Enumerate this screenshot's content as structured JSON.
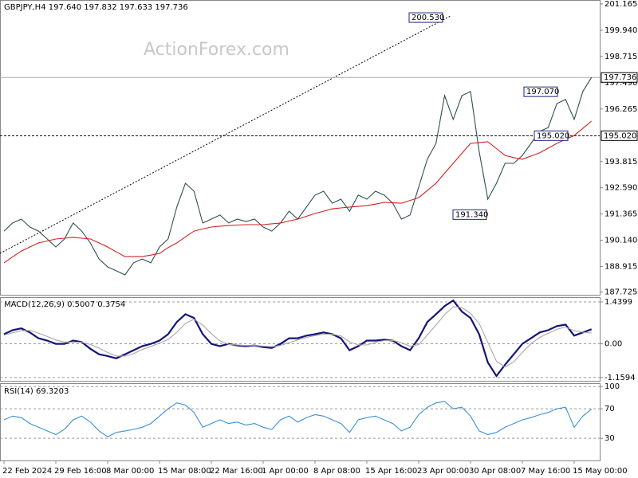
{
  "chart_data": [
    {
      "type": "line",
      "title": "GBPJPY,H4 197.640 197.832 197.633 197.736",
      "watermark": "ActionForex.com",
      "categories": [
        "22 Feb 2024",
        null,
        null,
        null,
        null,
        null,
        "29 Feb 16:00",
        null,
        null,
        null,
        null,
        null,
        "8 Mar 00:00",
        null,
        null,
        null,
        null,
        null,
        "15 Mar 08:00",
        null,
        null,
        null,
        null,
        null,
        "22 Mar 16:00",
        null,
        null,
        null,
        null,
        null,
        "1 Apr 00:00",
        null,
        null,
        null,
        null,
        null,
        "8 Apr 08:00",
        null,
        null,
        null,
        null,
        null,
        "15 Apr 16:00",
        null,
        null,
        null,
        null,
        null,
        "23 Apr 00:00",
        null,
        null,
        null,
        null,
        null,
        "30 Apr 08:00",
        null,
        null,
        null,
        null,
        null,
        "7 May 16:00",
        null,
        null,
        null,
        null,
        null,
        "15 May 00:00",
        null,
        null
      ],
      "series": [
        {
          "color": "#2f4f4f",
          "values": [
            190.57,
            190.95,
            191.13,
            190.76,
            190.57,
            190.2,
            189.83,
            190.2,
            190.95,
            190.57,
            190.02,
            189.27,
            188.9,
            188.72,
            188.53,
            189.09,
            189.27,
            189.09,
            189.83,
            190.2,
            191.69,
            192.8,
            192.43,
            190.95,
            191.13,
            191.32,
            190.95,
            191.13,
            191.02,
            191.13,
            190.76,
            190.57,
            190.95,
            191.5,
            191.13,
            191.69,
            192.25,
            192.43,
            191.87,
            192.06,
            191.5,
            192.25,
            192.06,
            192.43,
            192.25,
            191.87,
            191.13,
            191.32,
            192.62,
            193.92,
            194.66,
            196.89,
            195.78,
            196.89,
            197.08,
            194.29,
            192.06,
            192.8,
            193.73,
            193.73,
            194.1,
            194.66,
            195.22,
            195.4,
            196.52,
            196.71,
            195.78,
            197.08,
            197.736
          ]
        },
        {
          "color": "#d42020",
          "values": [
            189.09,
            189.37,
            189.64,
            189.83,
            190.02,
            190.11,
            190.2,
            190.24,
            190.28,
            190.24,
            190.2,
            190.02,
            189.83,
            189.6,
            189.38,
            189.38,
            189.38,
            189.45,
            189.53,
            189.8,
            190.02,
            190.3,
            190.57,
            190.67,
            190.76,
            190.8,
            190.83,
            190.85,
            190.87,
            190.87,
            190.87,
            190.91,
            190.95,
            191.04,
            191.13,
            191.26,
            191.39,
            191.5,
            191.61,
            191.65,
            191.69,
            191.72,
            191.76,
            191.83,
            191.91,
            191.89,
            191.87,
            192.0,
            192.13,
            192.46,
            192.8,
            193.27,
            193.73,
            194.2,
            194.66,
            194.7,
            194.74,
            194.42,
            194.1,
            194.0,
            193.92,
            194.07,
            194.22,
            194.44,
            194.66,
            194.85,
            195.03,
            195.36,
            195.7
          ]
        }
      ],
      "ylim": [
        187.6,
        201.35
      ],
      "yticks": [
        201.165,
        {
          "value": 199.94,
          "label": "199.940"
        },
        198.715,
        {
          "value": 197.49,
          "label": "197.490"
        },
        196.265,
        193.815,
        {
          "value": 192.59,
          "label": "192.590"
        },
        191.365,
        {
          "value": 190.14,
          "label": "190.140"
        },
        188.915,
        187.725
      ],
      "grid": false,
      "annotations": [
        {
          "value": 200.53,
          "label": "200.530"
        },
        {
          "value": 197.07,
          "label": "197.070"
        },
        {
          "value": 195.02,
          "label": "195.020"
        },
        {
          "value": 191.34,
          "label": "191.340"
        }
      ],
      "levels": [
        {
          "value": 195.02,
          "label": "195.020",
          "style": "dashed"
        },
        {
          "value": 197.736,
          "label": "197.736",
          "style": "solid"
        }
      ]
    },
    {
      "type": "line",
      "title": "MACD(12,26,9) 0.5007 0.3754",
      "series": [
        {
          "color": "#14147a",
          "values": [
            0.33,
            0.47,
            0.53,
            0.39,
            0.19,
            0.11,
            0,
            0,
            0.11,
            0.06,
            -0.17,
            -0.36,
            -0.42,
            -0.5,
            -0.36,
            -0.22,
            -0.08,
            0,
            0.11,
            0.33,
            0.75,
            1.02,
            0.89,
            0.33,
            0,
            -0.08,
            0,
            -0.06,
            -0.08,
            -0.06,
            -0.11,
            -0.14,
            0,
            0.19,
            0.19,
            0.28,
            0.33,
            0.39,
            0.33,
            0.19,
            -0.22,
            -0.08,
            0.11,
            0.11,
            0.14,
            0.11,
            -0.08,
            -0.22,
            0.19,
            0.75,
            1.02,
            1.3,
            1.49,
            1.11,
            0.89,
            0.33,
            -0.64,
            -1.11,
            -0.72,
            -0.36,
            0,
            0.19,
            0.39,
            0.47,
            0.61,
            0.66,
            0.28,
            0.39,
            0.5007
          ]
        },
        {
          "color": "#a8a8a8",
          "values": [
            0.3,
            0.38,
            0.45,
            0.46,
            0.37,
            0.25,
            0.13,
            0.06,
            0.06,
            0.05,
            -0.02,
            -0.15,
            -0.3,
            -0.42,
            -0.42,
            -0.34,
            -0.2,
            -0.09,
            0.02,
            0.15,
            0.4,
            0.7,
            0.85,
            0.65,
            0.35,
            0.1,
            -0.02,
            -0.04,
            -0.06,
            -0.06,
            -0.08,
            -0.1,
            -0.06,
            0.04,
            0.13,
            0.22,
            0.28,
            0.33,
            0.33,
            0.27,
            0.07,
            -0.04,
            -0.04,
            0.05,
            0.11,
            0.12,
            0.04,
            -0.08,
            -0.03,
            0.3,
            0.65,
            1.0,
            1.28,
            1.25,
            1.05,
            0.7,
            0.05,
            -0.6,
            -0.8,
            -0.62,
            -0.3,
            0.0,
            0.22,
            0.36,
            0.5,
            0.58,
            0.45,
            0.4,
            0.3754
          ]
        }
      ],
      "ylim": [
        -1.274,
        1.606
      ],
      "yticks": [
        1.4399,
        {
          "value": 0,
          "label": "0.00"
        },
        -1.1594
      ],
      "grid": true
    },
    {
      "type": "line",
      "title": "RSI(14) 69.3203",
      "series": [
        {
          "color": "#3d8fd6",
          "values": [
            55,
            60,
            58,
            50,
            45,
            40,
            35,
            42,
            55,
            60,
            52,
            40,
            32,
            38,
            40,
            42,
            45,
            50,
            60,
            70,
            78,
            75,
            65,
            45,
            50,
            55,
            50,
            52,
            48,
            50,
            45,
            42,
            55,
            60,
            52,
            58,
            62,
            60,
            55,
            50,
            38,
            55,
            58,
            60,
            55,
            50,
            40,
            45,
            62,
            72,
            78,
            80,
            70,
            72,
            60,
            40,
            35,
            38,
            45,
            50,
            55,
            58,
            62,
            65,
            70,
            72,
            45,
            60,
            69.3203
          ]
        }
      ],
      "ylim": [
        0,
        103.5
      ],
      "yticks": [
        100,
        70,
        30
      ],
      "grid": true
    }
  ]
}
